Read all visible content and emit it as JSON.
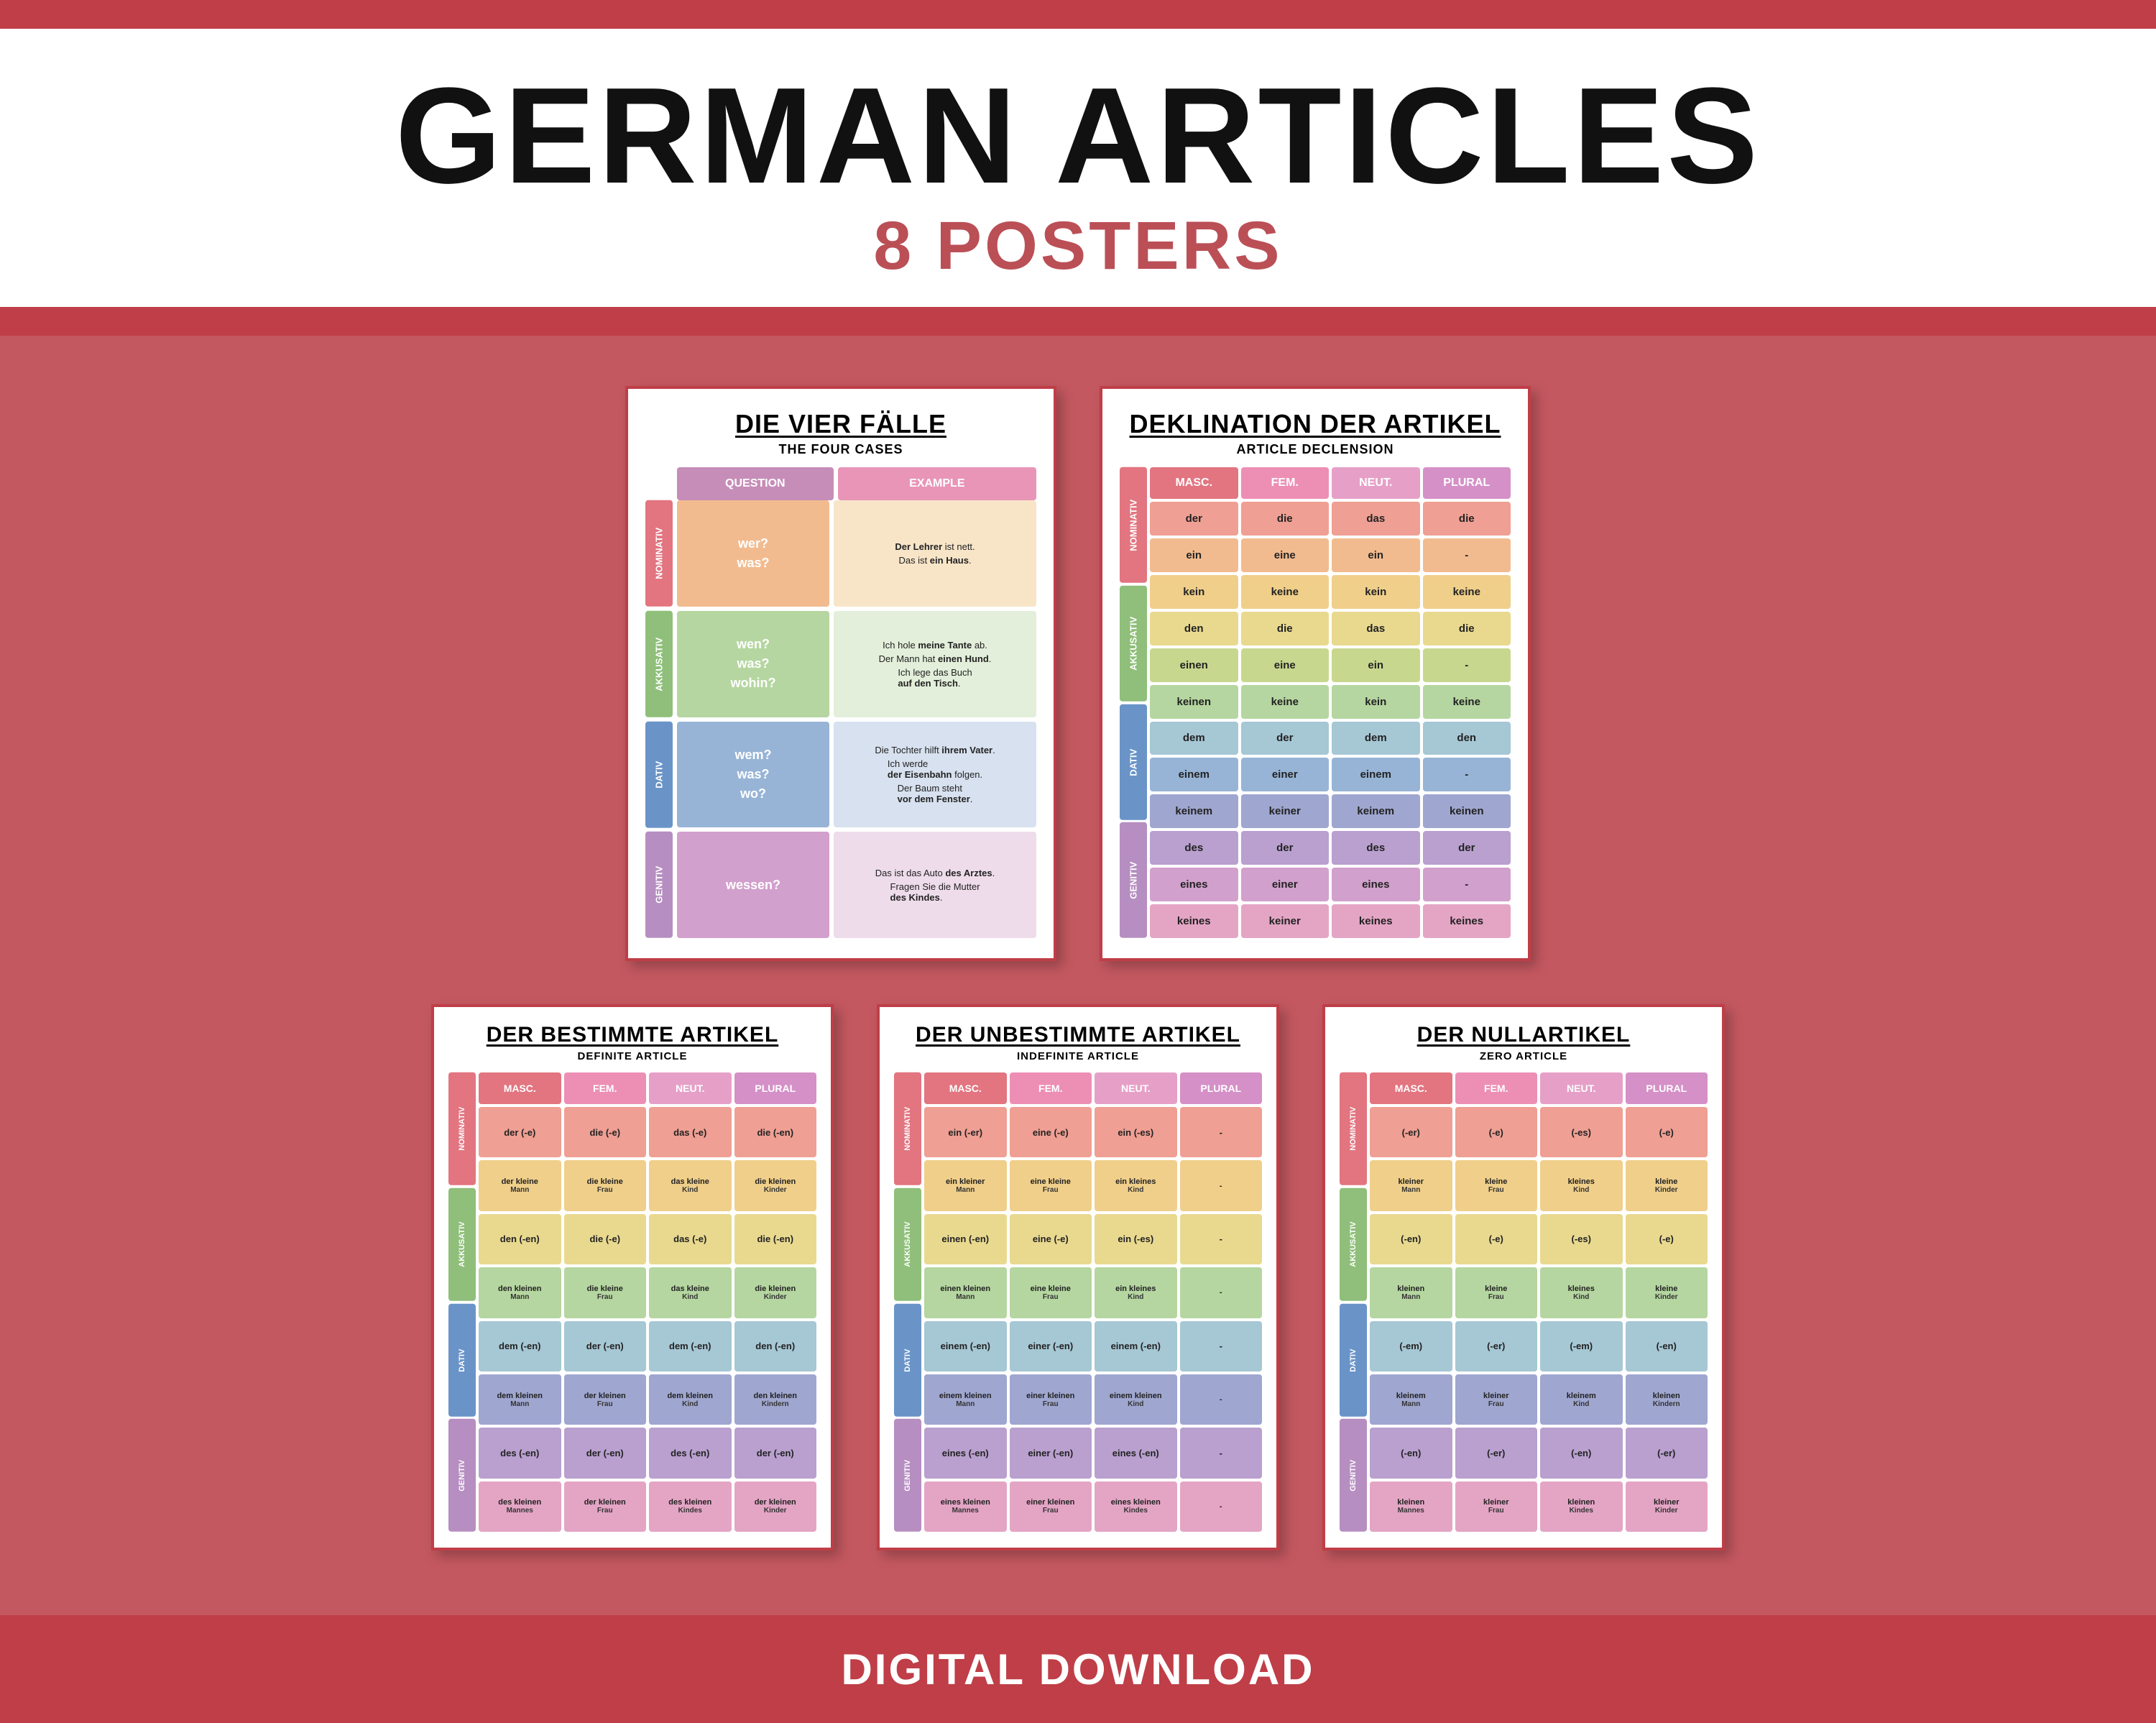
{
  "colors": {
    "band_red": "#bf3e47",
    "bg_rose": "#c45860",
    "case_nom": "#e27580",
    "case_akk": "#8fbf7a",
    "case_dat": "#6a94c8",
    "case_gen": "#b68ec1",
    "hdr_masc": "#e27580",
    "hdr_fem": "#ed8fb5",
    "hdr_neut": "#e6a0c8",
    "hdr_plural": "#d590c7",
    "p1_hdr_q": "#c68db8",
    "p1_hdr_e": "#e895b8",
    "nom_a": "#ef9f93",
    "nom_b": "#f2bb8f",
    "nom_c": "#f0cf8a",
    "akk_a": "#e9d98f",
    "akk_b": "#c7d88e",
    "akk_c": "#b5d6a0",
    "dat_a": "#a6c7d4",
    "dat_b": "#97b4d6",
    "dat_c": "#9fa6cf",
    "gen_a": "#b9a0cf",
    "gen_b": "#d2a0cc",
    "gen_c": "#e4a5c5"
  },
  "header": {
    "title": "GERMAN ARTICLES",
    "subtitle": "8 POSTERS",
    "footer": "DIGITAL DOWNLOAD"
  },
  "cases": [
    "NOMINATIV",
    "AKKUSATIV",
    "DATIV",
    "GENITIV"
  ],
  "genders": [
    "MASC.",
    "FEM.",
    "NEUT.",
    "PLURAL"
  ],
  "poster1": {
    "title": "DIE VIER FÄLLE",
    "subtitle": "THE FOUR CASES",
    "cols": [
      "QUESTION",
      "EXAMPLE"
    ],
    "rows": [
      {
        "q": [
          "wer?",
          "was?"
        ],
        "e": [
          "<b>Der Lehrer</b> ist nett.",
          "Das ist <b>ein Haus</b>."
        ],
        "qbg": "#f2bb8f",
        "ebg": "#f8e5c8"
      },
      {
        "q": [
          "wen?",
          "was?",
          "wohin?"
        ],
        "e": [
          "Ich hole <b>meine Tante</b> ab.",
          "Der Mann hat <b>einen Hund</b>.",
          "Ich lege das Buch<br><b>auf den Tisch</b>."
        ],
        "qbg": "#b5d6a0",
        "ebg": "#e3efda"
      },
      {
        "q": [
          "wem?",
          "was?",
          "wo?"
        ],
        "e": [
          "Die Tochter hilft <b>ihrem Vater</b>.",
          "Ich werde<br><b>der Eisenbahn</b> folgen.",
          "Der Baum steht<br><b>vor dem Fenster</b>."
        ],
        "qbg": "#97b4d6",
        "ebg": "#d7e1ef"
      },
      {
        "q": [
          "wessen?"
        ],
        "e": [
          "Das ist das Auto <b>des Arztes</b>.",
          "Fragen Sie die Mutter<br><b>des Kindes</b>."
        ],
        "qbg": "#d2a0cc",
        "ebg": "#eedceb"
      }
    ]
  },
  "poster2": {
    "title": "DEKLINATION DER ARTIKEL",
    "subtitle": "ARTICLE DECLENSION",
    "groups": [
      [
        [
          "der",
          "die",
          "das",
          "die"
        ],
        [
          "ein",
          "eine",
          "ein",
          "-"
        ],
        [
          "kein",
          "keine",
          "kein",
          "keine"
        ]
      ],
      [
        [
          "den",
          "die",
          "das",
          "die"
        ],
        [
          "einen",
          "eine",
          "ein",
          "-"
        ],
        [
          "keinen",
          "keine",
          "kein",
          "keine"
        ]
      ],
      [
        [
          "dem",
          "der",
          "dem",
          "den"
        ],
        [
          "einem",
          "einer",
          "einem",
          "-"
        ],
        [
          "keinem",
          "keiner",
          "keinem",
          "keinen"
        ]
      ],
      [
        [
          "des",
          "der",
          "des",
          "der"
        ],
        [
          "eines",
          "einer",
          "eines",
          "-"
        ],
        [
          "keines",
          "keiner",
          "keines",
          "keines"
        ]
      ]
    ]
  },
  "poster3": {
    "title": "DER BESTIMMTE ARTIKEL",
    "subtitle": "DEFINITE ARTICLE",
    "a": [
      [
        "der (-e)",
        "die (-e)",
        "das (-e)",
        "die (-en)"
      ],
      [
        "den (-en)",
        "die (-e)",
        "das (-e)",
        "die (-en)"
      ],
      [
        "dem (-en)",
        "der (-en)",
        "dem (-en)",
        "den (-en)"
      ],
      [
        "des (-en)",
        "der (-en)",
        "des (-en)",
        "der (-en)"
      ]
    ],
    "b": [
      [
        "der kleine|Mann",
        "die kleine|Frau",
        "das kleine|Kind",
        "die kleinen|Kinder"
      ],
      [
        "den kleinen|Mann",
        "die kleine|Frau",
        "das kleine|Kind",
        "die kleinen|Kinder"
      ],
      [
        "dem kleinen|Mann",
        "der kleinen|Frau",
        "dem kleinen|Kind",
        "den kleinen|Kindern"
      ],
      [
        "des kleinen|Mannes",
        "der kleinen|Frau",
        "des kleinen|Kindes",
        "der kleinen|Kinder"
      ]
    ]
  },
  "poster4": {
    "title": "DER UNBESTIMMTE ARTIKEL",
    "subtitle": "INDEFINITE ARTICLE",
    "a": [
      [
        "ein (-er)",
        "eine (-e)",
        "ein (-es)",
        "-"
      ],
      [
        "einen (-en)",
        "eine (-e)",
        "ein (-es)",
        "-"
      ],
      [
        "einem (-en)",
        "einer (-en)",
        "einem (-en)",
        "-"
      ],
      [
        "eines (-en)",
        "einer (-en)",
        "eines (-en)",
        "-"
      ]
    ],
    "b": [
      [
        "ein kleiner|Mann",
        "eine kleine|Frau",
        "ein kleines|Kind",
        "-|"
      ],
      [
        "einen kleinen|Mann",
        "eine kleine|Frau",
        "ein kleines|Kind",
        "-|"
      ],
      [
        "einem kleinen|Mann",
        "einer kleinen|Frau",
        "einem kleinen|Kind",
        "-|"
      ],
      [
        "eines kleinen|Mannes",
        "einer kleinen|Frau",
        "eines kleinen|Kindes",
        "-|"
      ]
    ]
  },
  "poster5": {
    "title": "DER NULLARTIKEL",
    "subtitle": "ZERO ARTICLE",
    "a": [
      [
        "(-er)",
        "(-e)",
        "(-es)",
        "(-e)"
      ],
      [
        "(-en)",
        "(-e)",
        "(-es)",
        "(-e)"
      ],
      [
        "(-em)",
        "(-er)",
        "(-em)",
        "(-en)"
      ],
      [
        "(-en)",
        "(-er)",
        "(-en)",
        "(-er)"
      ]
    ],
    "b": [
      [
        "kleiner|Mann",
        "kleine|Frau",
        "kleines|Kind",
        "kleine|Kinder"
      ],
      [
        "kleinen|Mann",
        "kleine|Frau",
        "kleines|Kind",
        "kleine|Kinder"
      ],
      [
        "kleinem|Mann",
        "kleiner|Frau",
        "kleinem|Kind",
        "kleinen|Kindern"
      ],
      [
        "kleinen|Mannes",
        "kleiner|Frau",
        "kleinen|Kindes",
        "kleiner|Kinder"
      ]
    ]
  }
}
